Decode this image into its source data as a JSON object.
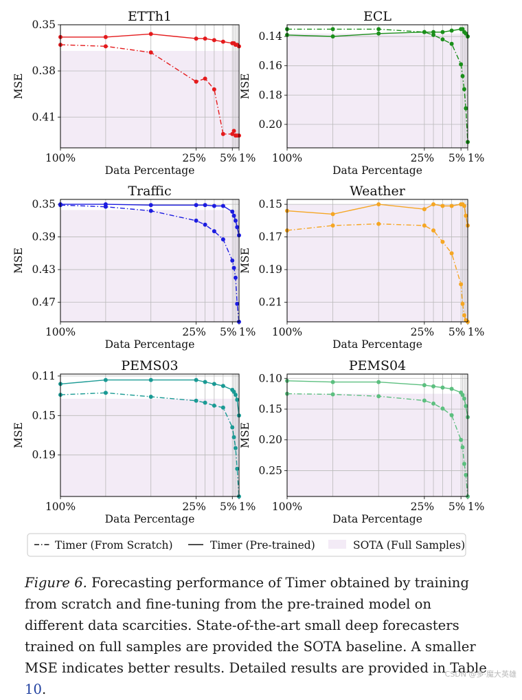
{
  "chart_data": [
    {
      "type": "line",
      "title": "ETTh1",
      "xlabel": "Data Percentage",
      "ylabel": "MSE",
      "ylim": [
        0.35,
        0.43
      ],
      "yticks": [
        "0.35",
        "0.38",
        "0.41"
      ],
      "xticks": [
        "100%",
        "25%",
        "5%",
        "1%"
      ],
      "sota": 0.367,
      "color": "#e41a1c",
      "x": [
        100,
        75,
        50,
        25,
        20,
        15,
        10,
        5,
        4,
        3,
        2,
        1
      ],
      "series": [
        {
          "name": "Timer (From Scratch)",
          "style": "dashdot",
          "values": [
            0.363,
            0.364,
            0.368,
            0.387,
            0.385,
            0.392,
            0.421,
            0.421,
            0.419,
            0.422,
            0.422,
            0.422
          ]
        },
        {
          "name": "Timer (Pre-trained)",
          "style": "solid",
          "values": [
            0.358,
            0.358,
            0.356,
            0.359,
            0.359,
            0.36,
            0.361,
            0.362,
            0.362,
            0.363,
            0.363,
            0.364
          ]
        }
      ]
    },
    {
      "type": "line",
      "title": "ECL",
      "xlabel": "Data Percentage",
      "ylabel": "MSE",
      "ylim": [
        0.132,
        0.216
      ],
      "yticks": [
        "0.14",
        "0.16",
        "0.18",
        "0.20"
      ],
      "xticks": [
        "100%",
        "25%",
        "5%",
        "1%"
      ],
      "sota": 0.138,
      "color": "#1a8f1a",
      "x": [
        100,
        75,
        50,
        25,
        20,
        15,
        10,
        5,
        4,
        3,
        2,
        1
      ],
      "series": [
        {
          "name": "Timer (From Scratch)",
          "style": "dashdot",
          "values": [
            0.135,
            0.135,
            0.135,
            0.137,
            0.139,
            0.142,
            0.145,
            0.159,
            0.167,
            0.176,
            0.189,
            0.212
          ]
        },
        {
          "name": "Timer (Pre-trained)",
          "style": "solid",
          "values": [
            0.139,
            0.14,
            0.138,
            0.137,
            0.137,
            0.137,
            0.136,
            0.135,
            0.135,
            0.137,
            0.138,
            0.14
          ]
        }
      ]
    },
    {
      "type": "line",
      "title": "Traffic",
      "xlabel": "Data Percentage",
      "ylabel": "MSE",
      "ylim": [
        0.344,
        0.494
      ],
      "yticks": [
        "0.35",
        "0.39",
        "0.43",
        "0.47"
      ],
      "xticks": [
        "100%",
        "25%",
        "5%",
        "1%"
      ],
      "sota": 0.357,
      "color": "#1c1ce0",
      "x": [
        100,
        75,
        50,
        25,
        20,
        15,
        10,
        5,
        4,
        3,
        2,
        1
      ],
      "series": [
        {
          "name": "Timer (From Scratch)",
          "style": "dashdot",
          "values": [
            0.351,
            0.353,
            0.358,
            0.37,
            0.375,
            0.383,
            0.393,
            0.419,
            0.428,
            0.44,
            0.472,
            0.494
          ]
        },
        {
          "name": "Timer (Pre-trained)",
          "style": "solid",
          "values": [
            0.35,
            0.35,
            0.351,
            0.351,
            0.351,
            0.352,
            0.352,
            0.359,
            0.364,
            0.37,
            0.378,
            0.388
          ]
        }
      ]
    },
    {
      "type": "line",
      "title": "Weather",
      "xlabel": "Data Percentage",
      "ylabel": "MSE",
      "ylim": [
        0.147,
        0.222
      ],
      "yticks": [
        "0.15",
        "0.17",
        "0.19",
        "0.21"
      ],
      "xticks": [
        "100%",
        "25%",
        "5%",
        "1%"
      ],
      "sota": 0.15,
      "color": "#f5a623",
      "x": [
        100,
        75,
        50,
        25,
        20,
        15,
        10,
        5,
        4,
        3,
        2,
        1
      ],
      "series": [
        {
          "name": "Timer (From Scratch)",
          "style": "dashdot",
          "values": [
            0.166,
            0.163,
            0.162,
            0.163,
            0.166,
            0.173,
            0.18,
            0.199,
            0.211,
            0.218,
            0.221,
            0.222
          ]
        },
        {
          "name": "Timer (Pre-trained)",
          "style": "solid",
          "values": [
            0.154,
            0.156,
            0.15,
            0.153,
            0.15,
            0.151,
            0.151,
            0.15,
            0.15,
            0.151,
            0.157,
            0.163
          ]
        }
      ]
    },
    {
      "type": "line",
      "title": "PEMS03",
      "xlabel": "Data Percentage",
      "ylabel": "MSE",
      "ylim": [
        0.108,
        0.232
      ],
      "yticks": [
        "0.11",
        "0.15",
        "0.19"
      ],
      "xticks": [
        "100%",
        "25%",
        "5%",
        "1%"
      ],
      "sota": 0.133,
      "color": "#1a9a94",
      "x": [
        100,
        75,
        50,
        25,
        20,
        15,
        10,
        5,
        4,
        3,
        2,
        1
      ],
      "series": [
        {
          "name": "Timer (From Scratch)",
          "style": "dashdot",
          "values": [
            0.129,
            0.127,
            0.131,
            0.135,
            0.137,
            0.14,
            0.142,
            0.162,
            0.172,
            0.183,
            0.204,
            0.232
          ]
        },
        {
          "name": "Timer (Pre-trained)",
          "style": "solid",
          "values": [
            0.118,
            0.114,
            0.114,
            0.114,
            0.116,
            0.118,
            0.12,
            0.124,
            0.126,
            0.129,
            0.134,
            0.15
          ]
        }
      ]
    },
    {
      "type": "line",
      "title": "PEMS04",
      "xlabel": "Data Percentage",
      "ylabel": "MSE",
      "ylim": [
        0.093,
        0.292
      ],
      "yticks": [
        "0.10",
        "0.15",
        "0.20",
        "0.25"
      ],
      "xticks": [
        "100%",
        "25%",
        "5%",
        "1%"
      ],
      "sota": 0.125,
      "color": "#5cbf7f",
      "x": [
        100,
        75,
        50,
        25,
        20,
        15,
        10,
        5,
        4,
        3,
        2,
        1
      ],
      "series": [
        {
          "name": "Timer (From Scratch)",
          "style": "dashdot",
          "values": [
            0.125,
            0.126,
            0.129,
            0.136,
            0.141,
            0.149,
            0.16,
            0.2,
            0.212,
            0.239,
            0.257,
            0.292
          ]
        },
        {
          "name": "Timer (Pre-trained)",
          "style": "solid",
          "values": [
            0.104,
            0.106,
            0.106,
            0.111,
            0.113,
            0.115,
            0.117,
            0.123,
            0.127,
            0.133,
            0.145,
            0.163
          ]
        }
      ]
    }
  ],
  "legend": {
    "scratch_label": "Timer (From Scratch)",
    "pretrained_label": "Timer (Pre-trained)",
    "sota_label": "SOTA (Full Samples)"
  },
  "caption": {
    "lead": "Figure 6.",
    "text": " Forecasting performance of Timer obtained by training from scratch and fine-tuning from the pre-trained model on different data scarcities. State-of-the-art small deep forecasters trained on full samples are provided the SOTA baseline. A smaller MSE indicates better results. Detailed results are provided in Table ",
    "ref": "10",
    "tail": "."
  },
  "watermark": "CSDN @多·魔大英雄",
  "colors": {
    "sota_fill": "#f3ebf6",
    "grid": "#b9b9b9",
    "axis": "#000000"
  }
}
